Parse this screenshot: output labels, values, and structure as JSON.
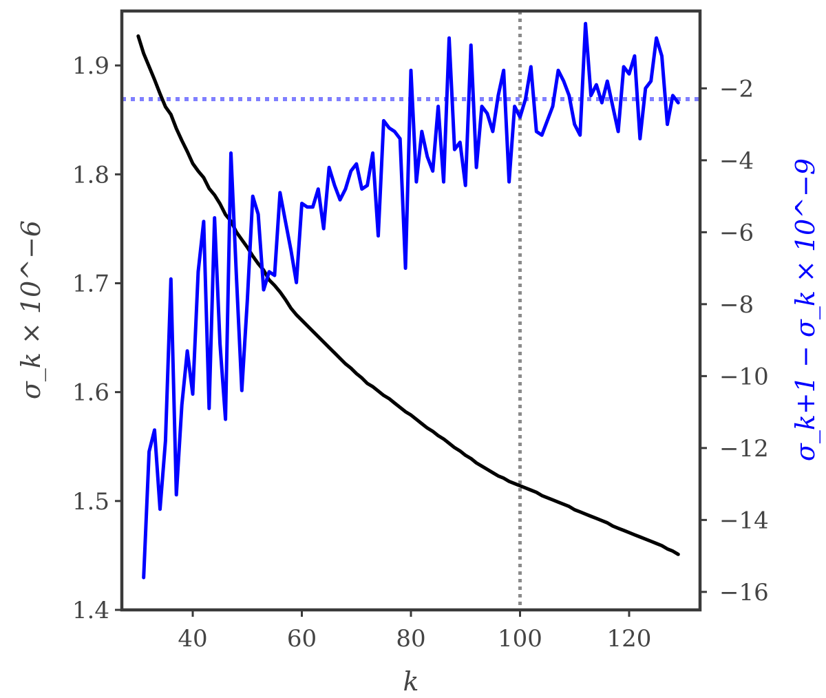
{
  "chart_data": {
    "type": "line",
    "xlabel": "k",
    "ylabel_left": "σ_k × 10^−6",
    "ylabel_right": "σ_k+1 − σ_k × 10^−9",
    "xlim": [
      27,
      133
    ],
    "ylim_left": [
      1.4,
      1.95
    ],
    "ylim_right": [
      -16.5,
      0.15
    ],
    "xticks": [
      40,
      60,
      80,
      100,
      120
    ],
    "yticks_left": [
      1.4,
      1.5,
      1.6,
      1.7,
      1.8,
      1.9
    ],
    "yticks_right": [
      -16,
      -14,
      -12,
      -10,
      -8,
      -6,
      -4,
      -2
    ],
    "grid": false,
    "colors": {
      "sigma": "#000000",
      "diff": "#0000ff",
      "vline": "#8a8a8a",
      "hline": "#7f7fff",
      "frame": "#3a3a3a"
    },
    "reference_lines": {
      "vertical_x": 100,
      "horizontal_right_y": -2.3
    },
    "series": [
      {
        "axis": "left",
        "x": [
          30,
          31,
          32,
          33,
          34,
          35,
          36,
          37,
          38,
          39,
          40,
          41,
          42,
          43,
          44,
          45,
          46,
          47,
          48,
          49,
          50,
          51,
          52,
          53,
          54,
          55,
          56,
          57,
          58,
          59,
          60,
          61,
          62,
          63,
          64,
          65,
          66,
          67,
          68,
          69,
          70,
          71,
          72,
          73,
          74,
          75,
          76,
          77,
          78,
          79,
          80,
          81,
          82,
          83,
          84,
          85,
          86,
          87,
          88,
          89,
          90,
          91,
          92,
          93,
          94,
          95,
          96,
          97,
          98,
          99,
          100,
          101,
          102,
          103,
          104,
          105,
          106,
          107,
          108,
          109,
          110,
          111,
          112,
          113,
          114,
          115,
          116,
          117,
          118,
          119,
          120,
          121,
          122,
          123,
          124,
          125,
          126,
          127,
          128,
          129
        ],
        "y": [
          1.927,
          1.911,
          1.899,
          1.887,
          1.874,
          1.862,
          1.855,
          1.842,
          1.831,
          1.821,
          1.81,
          1.803,
          1.797,
          1.787,
          1.781,
          1.773,
          1.763,
          1.757,
          1.747,
          1.74,
          1.733,
          1.725,
          1.718,
          1.712,
          1.703,
          1.698,
          1.692,
          1.685,
          1.677,
          1.671,
          1.666,
          1.661,
          1.656,
          1.651,
          1.646,
          1.641,
          1.636,
          1.631,
          1.626,
          1.622,
          1.617,
          1.613,
          1.608,
          1.605,
          1.601,
          1.597,
          1.594,
          1.59,
          1.586,
          1.582,
          1.579,
          1.575,
          1.571,
          1.567,
          1.564,
          1.56,
          1.557,
          1.553,
          1.549,
          1.546,
          1.542,
          1.539,
          1.535,
          1.532,
          1.529,
          1.526,
          1.523,
          1.521,
          1.518,
          1.516,
          1.514,
          1.512,
          1.51,
          1.508,
          1.505,
          1.503,
          1.501,
          1.499,
          1.497,
          1.495,
          1.492,
          1.49,
          1.488,
          1.486,
          1.484,
          1.482,
          1.48,
          1.477,
          1.475,
          1.473,
          1.471,
          1.469,
          1.467,
          1.465,
          1.463,
          1.461,
          1.459,
          1.456,
          1.454,
          1.451
        ]
      },
      {
        "axis": "right",
        "x": [
          31,
          32,
          33,
          34,
          35,
          36,
          37,
          38,
          39,
          40,
          41,
          42,
          43,
          44,
          45,
          46,
          47,
          48,
          49,
          50,
          51,
          52,
          53,
          54,
          55,
          56,
          57,
          58,
          59,
          60,
          61,
          62,
          63,
          64,
          65,
          66,
          67,
          68,
          69,
          70,
          71,
          72,
          73,
          74,
          75,
          76,
          77,
          78,
          79,
          80,
          81,
          82,
          83,
          84,
          85,
          86,
          87,
          88,
          89,
          90,
          91,
          92,
          93,
          94,
          95,
          96,
          97,
          98,
          99,
          100,
          101,
          102,
          103,
          104,
          105,
          106,
          107,
          108,
          109,
          110,
          111,
          112,
          113,
          114,
          115,
          116,
          117,
          118,
          119,
          120,
          121,
          122,
          123,
          124,
          125,
          126,
          127,
          128,
          129
        ],
        "y": [
          -15.6,
          -12.1,
          -11.5,
          -13.7,
          -11.8,
          -7.3,
          -13.3,
          -10.8,
          -9.3,
          -10.5,
          -7.1,
          -5.7,
          -10.9,
          -5.6,
          -9.1,
          -11.2,
          -3.8,
          -7.2,
          -10.4,
          -7.9,
          -5.0,
          -5.5,
          -7.6,
          -7.1,
          -7.2,
          -4.9,
          -5.7,
          -6.5,
          -7.4,
          -5.2,
          -5.3,
          -5.3,
          -4.8,
          -5.9,
          -4.2,
          -4.7,
          -5.1,
          -4.8,
          -4.3,
          -4.1,
          -4.8,
          -4.7,
          -3.8,
          -6.1,
          -2.9,
          -3.1,
          -3.2,
          -3.4,
          -7.0,
          -1.5,
          -4.6,
          -3.2,
          -3.9,
          -4.3,
          -2.5,
          -4.6,
          -0.6,
          -3.7,
          -3.5,
          -4.7,
          -0.8,
          -4.2,
          -2.5,
          -2.7,
          -3.2,
          -2.2,
          -1.5,
          -4.6,
          -2.5,
          -2.8,
          -2.3,
          -1.4,
          -3.2,
          -3.3,
          -2.9,
          -2.5,
          -1.5,
          -1.8,
          -2.2,
          -3.0,
          -3.3,
          -0.2,
          -2.2,
          -1.9,
          -2.4,
          -1.8,
          -2.5,
          -3.2,
          -1.4,
          -1.6,
          -1.1,
          -3.4,
          -2.0,
          -1.8,
          -0.6,
          -1.1,
          -3.0,
          -2.2,
          -2.4
        ]
      }
    ]
  }
}
